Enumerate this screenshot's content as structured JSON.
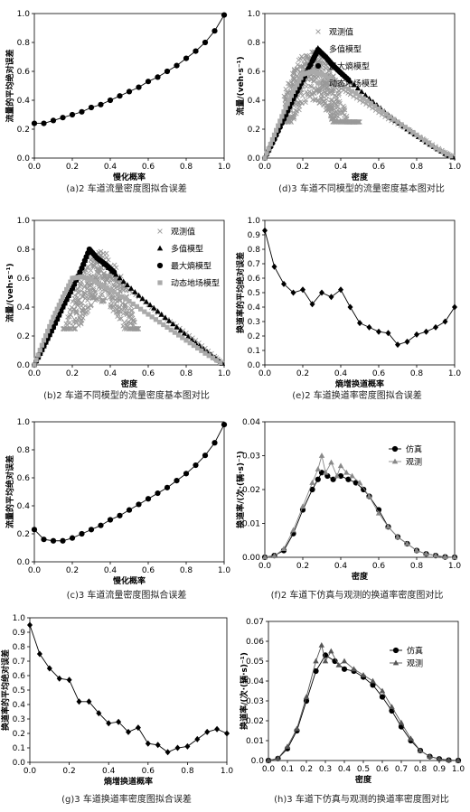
{
  "chart_data": [
    {
      "id": "a",
      "type": "line",
      "caption": "(a)2 车道流量密度图拟合误差",
      "xlabel": "慢化概率",
      "ylabel": "流量的平均绝对误差",
      "xlim": [
        0,
        1
      ],
      "ylim": [
        0,
        1
      ],
      "xticks": [
        "0.0",
        "0.2",
        "0.4",
        "0.6",
        "0.8",
        "1.0"
      ],
      "yticks": [
        "0.0",
        "0.2",
        "0.4",
        "0.6",
        "0.8",
        "1.0"
      ],
      "series": [
        {
          "marker": "circle",
          "color": "#000000",
          "x": [
            0,
            0.05,
            0.1,
            0.15,
            0.2,
            0.25,
            0.3,
            0.35,
            0.4,
            0.45,
            0.5,
            0.55,
            0.6,
            0.65,
            0.7,
            0.75,
            0.8,
            0.85,
            0.9,
            0.95,
            1.0
          ],
          "y": [
            0.24,
            0.24,
            0.26,
            0.28,
            0.3,
            0.32,
            0.35,
            0.37,
            0.4,
            0.43,
            0.46,
            0.49,
            0.53,
            0.56,
            0.6,
            0.64,
            0.69,
            0.74,
            0.8,
            0.88,
            0.99
          ]
        }
      ]
    },
    {
      "id": "d",
      "type": "scatter",
      "caption": "(d)3 车道不同模型的流量密度基本图对比",
      "xlabel": "密度",
      "ylabel": "流量/(veh·s⁻¹)",
      "xlim": [
        0,
        1
      ],
      "ylim": [
        0,
        1
      ],
      "xticks": [
        "0.0",
        "0.2",
        "0.4",
        "0.6",
        "0.8",
        "1.0"
      ],
      "yticks": [
        "0.0",
        "0.2",
        "0.4",
        "0.6",
        "0.8",
        "1.0"
      ],
      "legend": [
        "观测值",
        "多值模型",
        "最大熵模型",
        "动态地场模型"
      ],
      "cloud": {
        "count": 520,
        "xmin": 0.1,
        "xmax": 0.5,
        "center": 0.25,
        "peak": 0.7,
        "color": "#999999"
      },
      "series": [
        {
          "name": "观测值",
          "marker": "cross",
          "color": "#999999",
          "x": [
            0.28,
            0.32,
            0.38,
            0.45,
            0.55,
            0.65,
            0.75,
            0.85,
            0.95,
            1.0
          ],
          "y": [
            0.6,
            0.55,
            0.5,
            0.44,
            0.36,
            0.27,
            0.2,
            0.12,
            0.04,
            0.0
          ]
        },
        {
          "name": "多值模型",
          "marker": "triangle",
          "color": "#000000",
          "x": [
            0,
            0.05,
            0.1,
            0.15,
            0.2,
            0.25,
            0.28,
            0.35,
            0.45,
            0.55,
            0.65,
            0.75,
            0.85,
            0.95,
            1.0
          ],
          "y": [
            0,
            0.14,
            0.28,
            0.42,
            0.55,
            0.68,
            0.76,
            0.66,
            0.53,
            0.41,
            0.3,
            0.2,
            0.11,
            0.03,
            0.0
          ]
        },
        {
          "name": "最大熵模型",
          "marker": "circle",
          "color": "#000000",
          "x": [
            0,
            0.05,
            0.1,
            0.15,
            0.2,
            0.25,
            0.28,
            0.32,
            0.36,
            0.4,
            0.45
          ],
          "y": [
            0,
            0.13,
            0.27,
            0.41,
            0.54,
            0.67,
            0.75,
            0.7,
            0.64,
            0.59,
            0.53
          ]
        },
        {
          "name": "动态地场模型",
          "marker": "square",
          "color": "#aaaaaa",
          "x": [
            0,
            0.05,
            0.1,
            0.15,
            0.2,
            0.25,
            0.3,
            0.4,
            0.5,
            0.6,
            0.7,
            0.8,
            0.9,
            1.0
          ],
          "y": [
            0,
            0.16,
            0.32,
            0.46,
            0.58,
            0.6,
            0.58,
            0.51,
            0.43,
            0.34,
            0.25,
            0.16,
            0.07,
            0.0
          ]
        }
      ]
    },
    {
      "id": "b",
      "type": "scatter",
      "caption": "(b)2 车道不同模型的流量密度基本图对比",
      "xlabel": "密度",
      "ylabel": "流量/(veh·s⁻¹)",
      "xlim": [
        0,
        1
      ],
      "ylim": [
        0,
        1
      ],
      "xticks": [
        "0.0",
        "0.2",
        "0.4",
        "0.6",
        "0.8",
        "1.0"
      ],
      "yticks": [
        "0.0",
        "0.2",
        "0.4",
        "0.6",
        "0.8",
        "1.0"
      ],
      "legend": [
        "观测值",
        "多值模型",
        "最大熵模型",
        "动态地场模型"
      ],
      "cloud": {
        "count": 420,
        "xmin": 0.15,
        "xmax": 0.55,
        "center": 0.35,
        "peak": 0.75,
        "color": "#999999"
      },
      "series": [
        {
          "name": "观测值",
          "marker": "cross",
          "color": "#999999",
          "x": [
            0.3,
            0.35,
            0.45,
            0.55,
            0.65,
            0.75,
            0.85,
            0.95,
            1.0
          ],
          "y": [
            0.7,
            0.65,
            0.56,
            0.47,
            0.36,
            0.27,
            0.17,
            0.06,
            0.0
          ]
        },
        {
          "name": "多值模型",
          "marker": "triangle",
          "color": "#000000",
          "x": [
            0,
            0.05,
            0.1,
            0.15,
            0.2,
            0.25,
            0.29,
            0.35,
            0.45,
            0.55,
            0.65,
            0.75,
            0.85,
            0.95,
            1.0
          ],
          "y": [
            0,
            0.13,
            0.26,
            0.4,
            0.53,
            0.67,
            0.8,
            0.72,
            0.6,
            0.48,
            0.37,
            0.26,
            0.15,
            0.05,
            0.0
          ]
        },
        {
          "name": "最大熵模型",
          "marker": "circle",
          "color": "#000000",
          "x": [
            0,
            0.05,
            0.1,
            0.15,
            0.2,
            0.25,
            0.29,
            0.33,
            0.38,
            0.43
          ],
          "y": [
            0,
            0.13,
            0.26,
            0.4,
            0.53,
            0.67,
            0.8,
            0.74,
            0.69,
            0.63
          ]
        },
        {
          "name": "动态地场模型",
          "marker": "square",
          "color": "#aaaaaa",
          "x": [
            0,
            0.05,
            0.1,
            0.15,
            0.2,
            0.25,
            0.3,
            0.4,
            0.5,
            0.6,
            0.7,
            0.8,
            0.9,
            1.0
          ],
          "y": [
            0,
            0.17,
            0.33,
            0.47,
            0.6,
            0.61,
            0.59,
            0.52,
            0.44,
            0.35,
            0.26,
            0.17,
            0.08,
            0.0
          ]
        }
      ]
    },
    {
      "id": "e",
      "type": "line",
      "caption": "(e)2 车道换道率密度图拟合误差",
      "xlabel": "熵增换道概率",
      "ylabel": "换道率的平均绝对误差",
      "xlim": [
        0,
        1
      ],
      "ylim": [
        0,
        1
      ],
      "xticks": [
        "0.0",
        "0.2",
        "0.4",
        "0.6",
        "0.8",
        "1.0"
      ],
      "yticks": [
        "0.0",
        "0.1",
        "0.2",
        "0.3",
        "0.4",
        "0.5",
        "0.6",
        "0.7",
        "0.8",
        "0.9",
        "1.0"
      ],
      "series": [
        {
          "marker": "diamond",
          "color": "#000000",
          "x": [
            0,
            0.05,
            0.1,
            0.15,
            0.2,
            0.25,
            0.3,
            0.35,
            0.4,
            0.45,
            0.5,
            0.55,
            0.6,
            0.65,
            0.7,
            0.75,
            0.8,
            0.85,
            0.9,
            0.95,
            1.0
          ],
          "y": [
            0.93,
            0.68,
            0.56,
            0.5,
            0.52,
            0.42,
            0.5,
            0.47,
            0.52,
            0.4,
            0.29,
            0.26,
            0.23,
            0.22,
            0.14,
            0.16,
            0.21,
            0.23,
            0.26,
            0.3,
            0.4
          ]
        }
      ]
    },
    {
      "id": "c",
      "type": "line",
      "caption": "(c)3 车道流量密度图拟合误差",
      "xlabel": "慢化概率",
      "ylabel": "流量的平均绝对误差",
      "xlim": [
        0,
        1
      ],
      "ylim": [
        0,
        1
      ],
      "xticks": [
        "0.0",
        "0.2",
        "0.4",
        "0.6",
        "0.8",
        "1.0"
      ],
      "yticks": [
        "0.0",
        "0.2",
        "0.4",
        "0.6",
        "0.8",
        "1.0"
      ],
      "series": [
        {
          "marker": "circle",
          "color": "#000000",
          "x": [
            0,
            0.05,
            0.1,
            0.15,
            0.2,
            0.25,
            0.3,
            0.35,
            0.4,
            0.45,
            0.5,
            0.55,
            0.6,
            0.65,
            0.7,
            0.75,
            0.8,
            0.85,
            0.9,
            0.95,
            1.0
          ],
          "y": [
            0.23,
            0.16,
            0.15,
            0.15,
            0.17,
            0.2,
            0.23,
            0.26,
            0.3,
            0.33,
            0.37,
            0.41,
            0.45,
            0.49,
            0.53,
            0.58,
            0.63,
            0.69,
            0.76,
            0.85,
            0.98
          ]
        }
      ]
    },
    {
      "id": "f",
      "type": "line",
      "caption": "(f)2 车道下仿真与观测的换道率密度图对比",
      "xlabel": "密度",
      "ylabel": "换道率/(次·(辆·s)⁻¹)",
      "xlim": [
        0,
        1
      ],
      "ylim": [
        0,
        0.04
      ],
      "xticks": [
        "0.0",
        "0.2",
        "0.4",
        "0.6",
        "0.8",
        "1.0"
      ],
      "yticks": [
        "0.00",
        "0.01",
        "0.02",
        "0.03",
        "0.04"
      ],
      "legend": [
        "仿真",
        "观测"
      ],
      "series": [
        {
          "name": "仿真",
          "marker": "circle",
          "color": "#000000",
          "x": [
            0.0,
            0.05,
            0.1,
            0.15,
            0.2,
            0.25,
            0.28,
            0.3,
            0.33,
            0.36,
            0.4,
            0.44,
            0.48,
            0.52,
            0.55,
            0.6,
            0.65,
            0.7,
            0.75,
            0.8,
            0.85,
            0.9,
            0.95,
            1.0
          ],
          "y": [
            0.0,
            0.0005,
            0.002,
            0.007,
            0.014,
            0.02,
            0.023,
            0.025,
            0.024,
            0.023,
            0.024,
            0.023,
            0.022,
            0.02,
            0.018,
            0.014,
            0.009,
            0.006,
            0.004,
            0.002,
            0.001,
            0.0005,
            0.0001,
            0.0
          ]
        },
        {
          "name": "观测",
          "marker": "triangle",
          "color": "#888888",
          "x": [
            0.0,
            0.05,
            0.1,
            0.15,
            0.2,
            0.25,
            0.28,
            0.3,
            0.32,
            0.35,
            0.38,
            0.4,
            0.43,
            0.46,
            0.5,
            0.55,
            0.6,
            0.65,
            0.7,
            0.75,
            0.8,
            0.85,
            0.9,
            0.95,
            1.0
          ],
          "y": [
            0.0,
            0.0004,
            0.0025,
            0.008,
            0.015,
            0.022,
            0.026,
            0.03,
            0.025,
            0.028,
            0.024,
            0.027,
            0.025,
            0.024,
            0.022,
            0.018,
            0.013,
            0.009,
            0.006,
            0.004,
            0.002,
            0.001,
            0.0005,
            0.0001,
            0.0
          ]
        }
      ]
    },
    {
      "id": "g",
      "type": "line",
      "caption": "(g)3 车道换道率密度图拟合误差",
      "xlabel": "熵增换道概率",
      "ylabel": "换道率的平均绝对误差",
      "xlim": [
        0,
        1
      ],
      "ylim": [
        0,
        1
      ],
      "xticks": [
        "0.0",
        "0.2",
        "0.4",
        "0.6",
        "0.8",
        "1.0"
      ],
      "yticks": [
        "0.0",
        "0.1",
        "0.2",
        "0.3",
        "0.4",
        "0.5",
        "0.6",
        "0.7",
        "0.8",
        "0.9",
        "1.0"
      ],
      "series": [
        {
          "marker": "diamond",
          "color": "#000000",
          "x": [
            0,
            0.05,
            0.1,
            0.15,
            0.2,
            0.25,
            0.3,
            0.35,
            0.4,
            0.45,
            0.5,
            0.55,
            0.6,
            0.65,
            0.7,
            0.75,
            0.8,
            0.85,
            0.9,
            0.95,
            1.0
          ],
          "y": [
            0.95,
            0.75,
            0.65,
            0.58,
            0.57,
            0.42,
            0.42,
            0.34,
            0.27,
            0.28,
            0.21,
            0.24,
            0.13,
            0.12,
            0.07,
            0.1,
            0.11,
            0.16,
            0.21,
            0.23,
            0.2
          ]
        }
      ]
    },
    {
      "id": "h",
      "type": "line",
      "caption": "(h)3 车道下仿真与观测的换道率密度图对比",
      "xlabel": "密度",
      "ylabel": "换道率/(次·(辆·s)⁻¹)",
      "xlim": [
        0,
        1
      ],
      "ylim": [
        0,
        0.07
      ],
      "xticks": [
        "0.0",
        "0.1",
        "0.2",
        "0.3",
        "0.4",
        "0.5",
        "0.6",
        "0.7",
        "0.8",
        "0.9",
        "1.0"
      ],
      "yticks": [
        "0.0",
        "0.01",
        "0.02",
        "0.03",
        "0.04",
        "0.05",
        "0.06",
        "0.07"
      ],
      "legend": [
        "仿真",
        "观测"
      ],
      "series": [
        {
          "name": "仿真",
          "marker": "circle",
          "color": "#000000",
          "x": [
            0.0,
            0.05,
            0.1,
            0.15,
            0.2,
            0.25,
            0.3,
            0.35,
            0.4,
            0.45,
            0.5,
            0.55,
            0.6,
            0.65,
            0.7,
            0.75,
            0.8,
            0.85,
            0.9,
            0.95,
            1.0
          ],
          "y": [
            0.0,
            0.001,
            0.006,
            0.015,
            0.03,
            0.045,
            0.053,
            0.05,
            0.046,
            0.045,
            0.042,
            0.038,
            0.032,
            0.025,
            0.017,
            0.01,
            0.005,
            0.002,
            0.0008,
            0.0002,
            0.0
          ]
        },
        {
          "name": "观测",
          "marker": "triangle",
          "color": "#555555",
          "x": [
            0.0,
            0.05,
            0.1,
            0.15,
            0.2,
            0.25,
            0.28,
            0.3,
            0.33,
            0.37,
            0.4,
            0.45,
            0.5,
            0.55,
            0.6,
            0.65,
            0.7,
            0.75,
            0.8,
            0.85,
            0.9,
            0.95,
            1.0
          ],
          "y": [
            0.0,
            0.001,
            0.007,
            0.016,
            0.032,
            0.05,
            0.058,
            0.05,
            0.055,
            0.048,
            0.05,
            0.046,
            0.043,
            0.04,
            0.035,
            0.027,
            0.019,
            0.011,
            0.005,
            0.002,
            0.0008,
            0.0002,
            0.0
          ]
        }
      ]
    }
  ]
}
